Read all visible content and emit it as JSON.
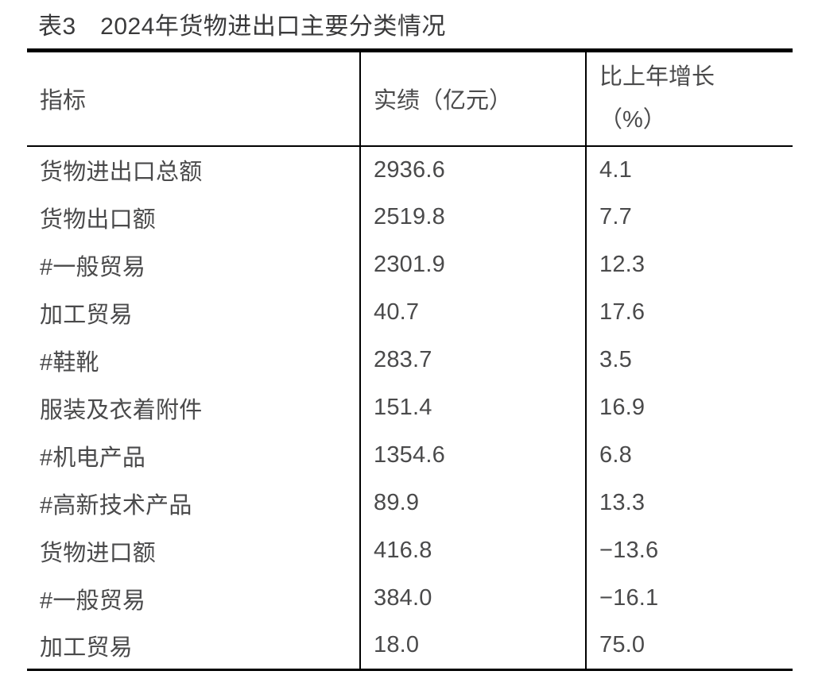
{
  "title": "表3　2024年货物进出口主要分类情况",
  "table": {
    "header": {
      "indicator": "指标",
      "value": "实绩（亿元）",
      "growth_line1": "比上年增长",
      "growth_line2": "（%）"
    },
    "rows": [
      {
        "indicator": "货物进出口总额",
        "value": "2936.6",
        "growth": "4.1"
      },
      {
        "indicator": "货物出口额",
        "value": "2519.8",
        "growth": "7.7"
      },
      {
        "indicator": "#一般贸易",
        "value": "2301.9",
        "growth": "12.3"
      },
      {
        "indicator": "加工贸易",
        "value": "40.7",
        "growth": "17.6"
      },
      {
        "indicator": "#鞋靴",
        "value": "283.7",
        "growth": "3.5"
      },
      {
        "indicator": "服装及衣着附件",
        "value": "151.4",
        "growth": "16.9"
      },
      {
        "indicator": "#机电产品",
        "value": "1354.6",
        "growth": "6.8"
      },
      {
        "indicator": "#高新技术产品",
        "value": "89.9",
        "growth": "13.3"
      },
      {
        "indicator": "货物进口额",
        "value": "416.8",
        "growth": "−13.6"
      },
      {
        "indicator": "#一般贸易",
        "value": "384.0",
        "growth": "−16.1"
      },
      {
        "indicator": "加工贸易",
        "value": "18.0",
        "growth": "75.0"
      }
    ],
    "border_color": "#000000",
    "text_color": "#4a4a4b"
  }
}
